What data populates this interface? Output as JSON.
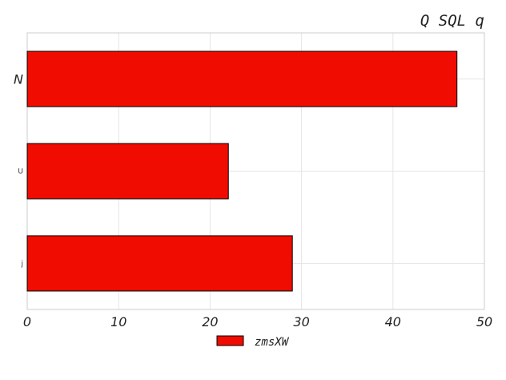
{
  "chart_data": {
    "type": "bar",
    "orientation": "horizontal",
    "title": "Q SQL q",
    "xlabel": "",
    "ylabel": "",
    "categories": [
      "N",
      "U",
      "j"
    ],
    "series": [
      {
        "name": "zmsXW",
        "values": [
          47,
          22,
          29
        ]
      }
    ],
    "xlim": [
      0,
      50
    ],
    "xticks": [
      "0",
      "10",
      "20",
      "30",
      "40",
      "50"
    ],
    "grid": true,
    "legend_position": "bottom-center",
    "colors": {
      "bar": "#f00c00",
      "edge": "#000000",
      "grid": "#e5e5e5",
      "frame": "#cccccc"
    }
  }
}
